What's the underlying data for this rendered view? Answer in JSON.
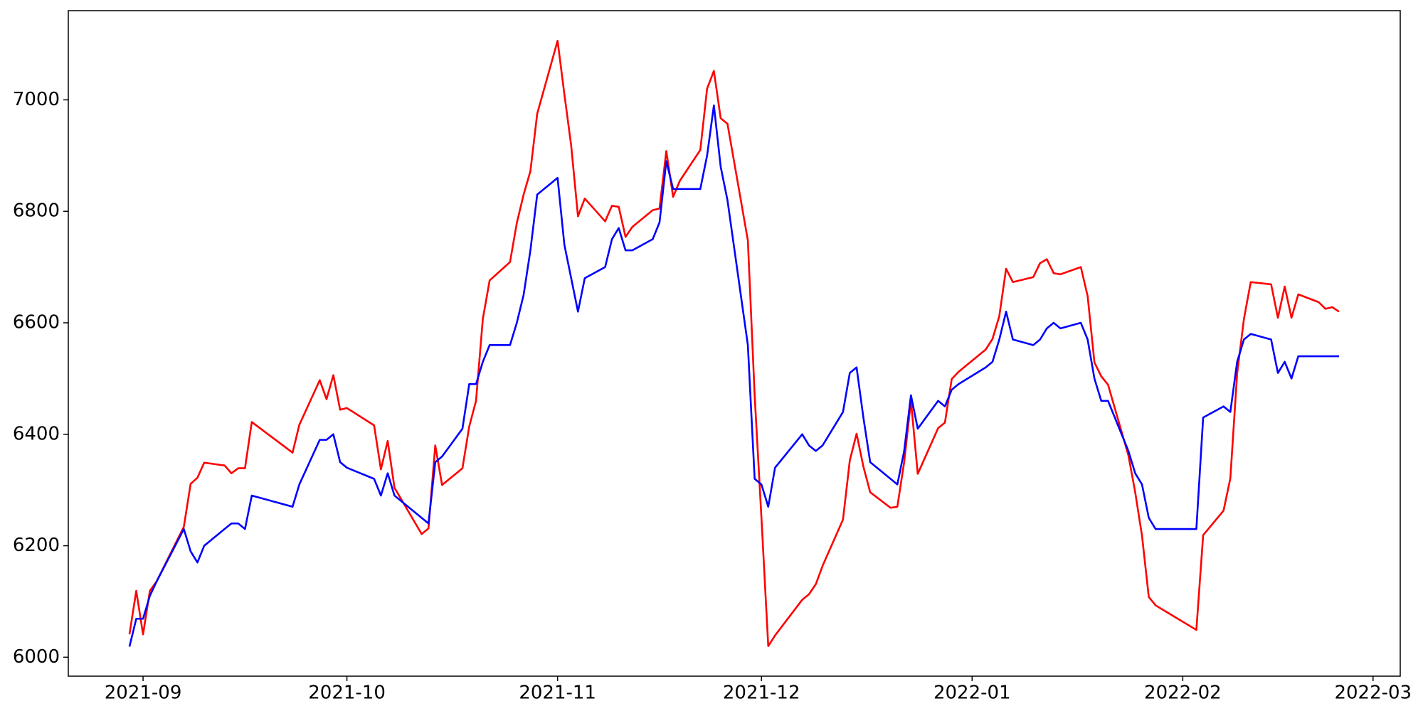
{
  "chart_data": {
    "type": "line",
    "x": [
      "2021-08-30",
      "2021-08-31",
      "2021-09-01",
      "2021-09-02",
      "2021-09-03",
      "2021-09-07",
      "2021-09-08",
      "2021-09-09",
      "2021-09-10",
      "2021-09-13",
      "2021-09-14",
      "2021-09-15",
      "2021-09-16",
      "2021-09-17",
      "2021-09-23",
      "2021-09-24",
      "2021-09-27",
      "2021-09-28",
      "2021-09-29",
      "2021-09-30",
      "2021-10-01",
      "2021-10-05",
      "2021-10-06",
      "2021-10-07",
      "2021-10-08",
      "2021-10-12",
      "2021-10-13",
      "2021-10-14",
      "2021-10-15",
      "2021-10-18",
      "2021-10-19",
      "2021-10-20",
      "2021-10-21",
      "2021-10-22",
      "2021-10-25",
      "2021-10-26",
      "2021-10-27",
      "2021-10-28",
      "2021-10-29",
      "2021-11-01",
      "2021-11-02",
      "2021-11-03",
      "2021-11-04",
      "2021-11-05",
      "2021-11-08",
      "2021-11-09",
      "2021-11-10",
      "2021-11-11",
      "2021-11-12",
      "2021-11-15",
      "2021-11-16",
      "2021-11-17",
      "2021-11-18",
      "2021-11-19",
      "2021-11-22",
      "2021-11-23",
      "2021-11-24",
      "2021-11-25",
      "2021-11-26",
      "2021-11-29",
      "2021-11-30",
      "2021-12-01",
      "2021-12-02",
      "2021-12-03",
      "2021-12-07",
      "2021-12-08",
      "2021-12-09",
      "2021-12-10",
      "2021-12-13",
      "2021-12-14",
      "2021-12-15",
      "2021-12-16",
      "2021-12-17",
      "2021-12-20",
      "2021-12-21",
      "2021-12-22",
      "2021-12-23",
      "2021-12-24",
      "2021-12-27",
      "2021-12-28",
      "2021-12-29",
      "2021-12-30",
      "2022-01-03",
      "2022-01-04",
      "2022-01-05",
      "2022-01-06",
      "2022-01-07",
      "2022-01-10",
      "2022-01-11",
      "2022-01-12",
      "2022-01-13",
      "2022-01-14",
      "2022-01-17",
      "2022-01-18",
      "2022-01-19",
      "2022-01-20",
      "2022-01-21",
      "2022-01-24",
      "2022-01-25",
      "2022-01-26",
      "2022-01-27",
      "2022-01-28",
      "2022-02-03",
      "2022-02-04",
      "2022-02-07",
      "2022-02-08",
      "2022-02-09",
      "2022-02-10",
      "2022-02-11",
      "2022-02-14",
      "2022-02-15",
      "2022-02-16",
      "2022-02-17",
      "2022-02-18",
      "2022-02-21",
      "2022-02-22",
      "2022-02-23",
      "2022-02-24"
    ],
    "series": [
      {
        "color": "#ff0000",
        "values": [
          6041,
          6119,
          6041,
          6119,
          6136,
          6234,
          6311,
          6322,
          6349,
          6344,
          6330,
          6339,
          6339,
          6422,
          6367,
          6417,
          6497,
          6463,
          6506,
          6444,
          6447,
          6416,
          6337,
          6388,
          6304,
          6221,
          6231,
          6380,
          6309,
          6339,
          6414,
          6460,
          6607,
          6676,
          6709,
          6779,
          6830,
          6872,
          6975,
          7106,
          7010,
          6918,
          6791,
          6823,
          6782,
          6810,
          6808,
          6754,
          6772,
          6802,
          6805,
          6908,
          6826,
          6855,
          6910,
          7020,
          7052,
          6967,
          6957,
          6748,
          6470,
          6250,
          6020,
          6039,
          6103,
          6113,
          6131,
          6164,
          6247,
          6353,
          6401,
          6342,
          6296,
          6268,
          6270,
          6350,
          6460,
          6329,
          6411,
          6421,
          6499,
          6512,
          6552,
          6571,
          6612,
          6697,
          6673,
          6682,
          6707,
          6714,
          6689,
          6687,
          6700,
          6648,
          6529,
          6504,
          6489,
          6362,
          6296,
          6218,
          6108,
          6093,
          6049,
          6219,
          6263,
          6321,
          6509,
          6607,
          6673,
          6669,
          6609,
          6665,
          6609,
          6651,
          6637,
          6625,
          6628,
          6620
        ]
      },
      {
        "color": "#0000ff",
        "values": [
          6019,
          6069,
          6069,
          6110,
          6136,
          6230,
          6190,
          6170,
          6200,
          6230,
          6240,
          6240,
          6230,
          6290,
          6270,
          6310,
          6390,
          6390,
          6400,
          6350,
          6340,
          6320,
          6290,
          6330,
          6290,
          6250,
          6240,
          6350,
          6360,
          6410,
          6490,
          6490,
          6530,
          6560,
          6560,
          6600,
          6650,
          6730,
          6830,
          6860,
          6740,
          6680,
          6620,
          6680,
          6700,
          6750,
          6770,
          6730,
          6730,
          6750,
          6780,
          6890,
          6840,
          6840,
          6840,
          6900,
          6990,
          6880,
          6820,
          6560,
          6320,
          6310,
          6270,
          6340,
          6400,
          6380,
          6370,
          6380,
          6440,
          6510,
          6520,
          6430,
          6350,
          6320,
          6310,
          6370,
          6470,
          6410,
          6460,
          6450,
          6480,
          6490,
          6520,
          6530,
          6570,
          6620,
          6570,
          6560,
          6570,
          6590,
          6600,
          6590,
          6600,
          6570,
          6500,
          6460,
          6460,
          6370,
          6330,
          6310,
          6250,
          6230,
          6230,
          6430,
          6450,
          6440,
          6530,
          6570,
          6580,
          6570,
          6510,
          6530,
          6500,
          6540,
          6540,
          6540,
          6540,
          6540
        ]
      }
    ],
    "xlim": [
      "2021-08-21",
      "2022-03-05"
    ],
    "xticks": [
      {
        "value": "2021-09-01",
        "label": "2021-09"
      },
      {
        "value": "2021-10-01",
        "label": "2021-10"
      },
      {
        "value": "2021-11-01",
        "label": "2021-11"
      },
      {
        "value": "2021-12-01",
        "label": "2021-12"
      },
      {
        "value": "2022-01-01",
        "label": "2022-01"
      },
      {
        "value": "2022-02-01",
        "label": "2022-02"
      },
      {
        "value": "2022-03-01",
        "label": "2022-03"
      }
    ],
    "ylim": [
      5966,
      7160
    ],
    "yticks": [
      6000,
      6200,
      6400,
      6600,
      6800,
      7000
    ],
    "grid": false
  }
}
